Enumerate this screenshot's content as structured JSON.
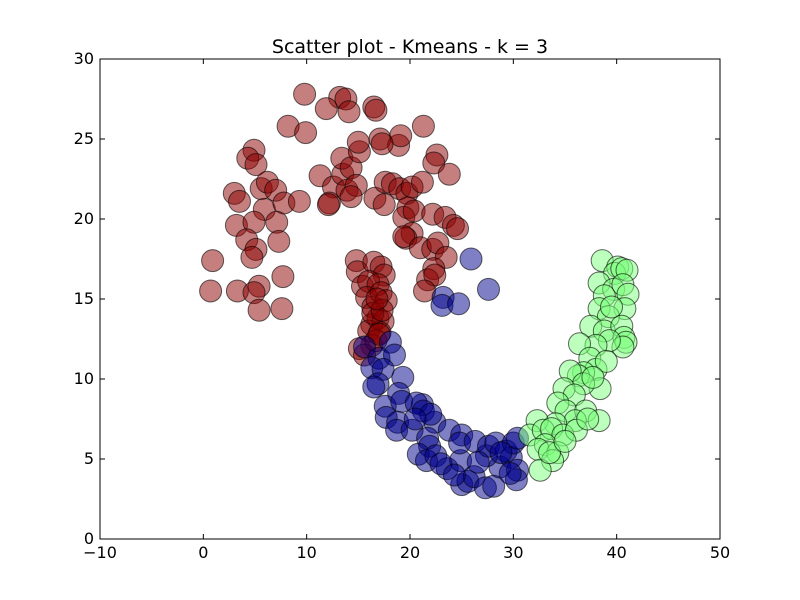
{
  "chart_data": {
    "type": "scatter",
    "title": "Scatter plot - Kmeans - k = 3",
    "xlabel": "",
    "ylabel": "",
    "xlim": [
      -10,
      50
    ],
    "ylim": [
      0,
      30
    ],
    "xticks": [
      -10,
      0,
      10,
      20,
      30,
      40,
      50
    ],
    "yticks": [
      0,
      5,
      10,
      15,
      20,
      25,
      30
    ],
    "xtick_labels": [
      "−10",
      "0",
      "10",
      "20",
      "30",
      "40",
      "50"
    ],
    "ytick_labels": [
      "0",
      "5",
      "10",
      "15",
      "20",
      "25",
      "30"
    ],
    "grid": false,
    "legend": "none",
    "series": [
      {
        "color": "#8b0000",
        "points": [
          [
            9.8,
            27.8
          ],
          [
            13.2,
            27.6
          ],
          [
            8.2,
            25.8
          ],
          [
            9.9,
            25.4
          ],
          [
            11.9,
            26.9
          ],
          [
            13.8,
            27.5
          ],
          [
            14.1,
            26.7
          ],
          [
            16.5,
            27.0
          ],
          [
            16.7,
            26.8
          ],
          [
            21.3,
            25.8
          ],
          [
            17.1,
            25.0
          ],
          [
            18.9,
            24.6
          ],
          [
            19.1,
            25.2
          ],
          [
            4.9,
            24.3
          ],
          [
            4.3,
            23.8
          ],
          [
            5.1,
            23.4
          ],
          [
            5.6,
            21.9
          ],
          [
            3.0,
            21.6
          ],
          [
            3.5,
            21.1
          ],
          [
            6.2,
            22.3
          ],
          [
            7.0,
            21.8
          ],
          [
            5.9,
            20.6
          ],
          [
            7.8,
            21.0
          ],
          [
            3.2,
            19.6
          ],
          [
            4.9,
            19.8
          ],
          [
            7.1,
            19.8
          ],
          [
            4.2,
            18.7
          ],
          [
            5.1,
            18.1
          ],
          [
            4.7,
            17.6
          ],
          [
            7.3,
            18.6
          ],
          [
            0.9,
            17.4
          ],
          [
            0.7,
            15.5
          ],
          [
            3.3,
            15.5
          ],
          [
            5.4,
            15.8
          ],
          [
            4.9,
            15.4
          ],
          [
            5.4,
            14.3
          ],
          [
            7.6,
            14.4
          ],
          [
            7.7,
            16.4
          ],
          [
            9.3,
            21.1
          ],
          [
            11.3,
            22.7
          ],
          [
            12.6,
            22.0
          ],
          [
            13.5,
            22.8
          ],
          [
            13.4,
            23.8
          ],
          [
            14.3,
            23.2
          ],
          [
            15.1,
            24.2
          ],
          [
            15.0,
            24.8
          ],
          [
            17.3,
            24.7
          ],
          [
            22.6,
            24.0
          ],
          [
            22.3,
            23.5
          ],
          [
            23.8,
            22.8
          ],
          [
            13.9,
            21.8
          ],
          [
            14.8,
            22.1
          ],
          [
            14.3,
            21.4
          ],
          [
            12.2,
            21.0
          ],
          [
            12.1,
            20.9
          ],
          [
            16.6,
            21.3
          ],
          [
            17.5,
            20.9
          ],
          [
            17.6,
            22.3
          ],
          [
            18.3,
            22.2
          ],
          [
            19.0,
            21.9
          ],
          [
            19.7,
            21.6
          ],
          [
            20.2,
            22.0
          ],
          [
            21.2,
            22.3
          ],
          [
            19.8,
            20.7
          ],
          [
            19.4,
            20.1
          ],
          [
            20.4,
            20.5
          ],
          [
            22.2,
            20.3
          ],
          [
            23.4,
            20.1
          ],
          [
            24.2,
            19.6
          ],
          [
            20.2,
            19.1
          ],
          [
            19.6,
            18.8
          ],
          [
            19.4,
            18.9
          ],
          [
            21.0,
            18.2
          ],
          [
            22.2,
            18.1
          ],
          [
            22.7,
            18.5
          ],
          [
            23.5,
            17.6
          ],
          [
            24.6,
            19.4
          ],
          [
            22.3,
            16.9
          ],
          [
            21.7,
            16.2
          ],
          [
            22.4,
            16.5
          ],
          [
            21.4,
            15.5
          ],
          [
            14.8,
            17.4
          ],
          [
            14.9,
            16.7
          ],
          [
            16.5,
            17.3
          ],
          [
            17.2,
            17.0
          ],
          [
            17.5,
            16.5
          ],
          [
            15.4,
            15.8
          ],
          [
            16.0,
            16.1
          ],
          [
            16.9,
            15.9
          ],
          [
            15.8,
            15.1
          ],
          [
            16.4,
            14.5
          ],
          [
            17.2,
            15.4
          ],
          [
            17.7,
            14.9
          ],
          [
            16.3,
            13.4
          ],
          [
            16.9,
            13.8
          ],
          [
            17.4,
            13.6
          ],
          [
            16.0,
            13.0
          ],
          [
            17.1,
            12.9
          ],
          [
            16.3,
            12.1
          ],
          [
            15.1,
            11.9
          ],
          [
            15.6,
            11.5
          ],
          [
            16.7,
            12.4
          ],
          [
            17.0,
            12.8
          ],
          [
            16.4,
            14.1
          ],
          [
            17.3,
            14.3
          ],
          [
            16.8,
            15.0
          ]
        ]
      },
      {
        "color": "#00008b",
        "points": [
          [
            25.9,
            17.5
          ],
          [
            27.6,
            15.6
          ],
          [
            23.2,
            15.1
          ],
          [
            23.1,
            14.6
          ],
          [
            24.7,
            14.7
          ],
          [
            15.6,
            12.0
          ],
          [
            18.1,
            12.3
          ],
          [
            17.0,
            11.3
          ],
          [
            18.5,
            11.5
          ],
          [
            16.3,
            10.7
          ],
          [
            17.4,
            10.6
          ],
          [
            19.3,
            10.1
          ],
          [
            16.9,
            9.7
          ],
          [
            16.5,
            9.5
          ],
          [
            18.9,
            9.1
          ],
          [
            17.6,
            8.3
          ],
          [
            19.2,
            8.6
          ],
          [
            17.7,
            7.6
          ],
          [
            18.8,
            7.3
          ],
          [
            18.7,
            6.8
          ],
          [
            20.2,
            6.8
          ],
          [
            21.2,
            8.4
          ],
          [
            20.6,
            8.5
          ],
          [
            21.3,
            8.0
          ],
          [
            22.4,
            7.3
          ],
          [
            21.7,
            6.3
          ],
          [
            21.9,
            5.8
          ],
          [
            20.8,
            5.3
          ],
          [
            21.6,
            4.9
          ],
          [
            23.8,
            6.8
          ],
          [
            22.5,
            5.2
          ],
          [
            23.6,
            4.4
          ],
          [
            24.9,
            4.9
          ],
          [
            25.0,
            6.5
          ],
          [
            24.8,
            6.0
          ],
          [
            26.3,
            6.1
          ],
          [
            25.0,
            3.4
          ],
          [
            25.6,
            3.6
          ],
          [
            26.2,
            3.9
          ],
          [
            27.3,
            3.2
          ],
          [
            28.1,
            3.3
          ],
          [
            28.7,
            4.5
          ],
          [
            27.4,
            5.2
          ],
          [
            27.6,
            5.8
          ],
          [
            28.3,
            6.0
          ],
          [
            29.3,
            5.5
          ],
          [
            29.8,
            5.1
          ],
          [
            30.0,
            6.0
          ],
          [
            30.4,
            6.3
          ],
          [
            30.4,
            4.3
          ],
          [
            30.3,
            3.7
          ],
          [
            29.7,
            4.1
          ],
          [
            22.0,
            7.8
          ],
          [
            20.5,
            7.5
          ],
          [
            23.0,
            4.7
          ],
          [
            26.6,
            4.8
          ],
          [
            28.8,
            5.4
          ],
          [
            24.3,
            4.0
          ]
        ]
      },
      {
        "color": "#7cff7c",
        "points": [
          [
            38.6,
            17.4
          ],
          [
            40.1,
            17.0
          ],
          [
            39.8,
            16.6
          ],
          [
            40.5,
            16.9
          ],
          [
            41.0,
            16.8
          ],
          [
            38.3,
            16.0
          ],
          [
            39.7,
            15.6
          ],
          [
            38.8,
            15.2
          ],
          [
            40.6,
            15.9
          ],
          [
            41.1,
            15.3
          ],
          [
            40.8,
            14.4
          ],
          [
            38.3,
            14.4
          ],
          [
            39.2,
            13.9
          ],
          [
            37.5,
            13.3
          ],
          [
            38.8,
            13.0
          ],
          [
            40.5,
            13.3
          ],
          [
            40.7,
            12.6
          ],
          [
            40.9,
            12.3
          ],
          [
            40.6,
            12.0
          ],
          [
            39.3,
            12.4
          ],
          [
            38.0,
            12.1
          ],
          [
            36.4,
            12.2
          ],
          [
            37.4,
            11.3
          ],
          [
            38.0,
            10.6
          ],
          [
            36.8,
            10.4
          ],
          [
            36.3,
            10.2
          ],
          [
            35.5,
            10.5
          ],
          [
            38.4,
            9.4
          ],
          [
            36.8,
            9.7
          ],
          [
            34.9,
            9.4
          ],
          [
            35.9,
            9.0
          ],
          [
            34.3,
            8.5
          ],
          [
            35.1,
            8.0
          ],
          [
            37.0,
            8.0
          ],
          [
            38.3,
            7.4
          ],
          [
            36.0,
            7.4
          ],
          [
            34.1,
            7.2
          ],
          [
            32.3,
            7.4
          ],
          [
            31.6,
            6.5
          ],
          [
            32.9,
            6.8
          ],
          [
            33.7,
            6.9
          ],
          [
            34.8,
            6.5
          ],
          [
            33.1,
            5.9
          ],
          [
            32.4,
            5.6
          ],
          [
            34.3,
            5.4
          ],
          [
            33.8,
            4.9
          ],
          [
            32.6,
            4.3
          ],
          [
            36.1,
            6.8
          ],
          [
            37.2,
            7.5
          ],
          [
            39.5,
            14.5
          ],
          [
            39.0,
            11.1
          ],
          [
            37.7,
            10.1
          ],
          [
            33.5,
            5.4
          ],
          [
            35.0,
            6.1
          ]
        ]
      }
    ]
  }
}
